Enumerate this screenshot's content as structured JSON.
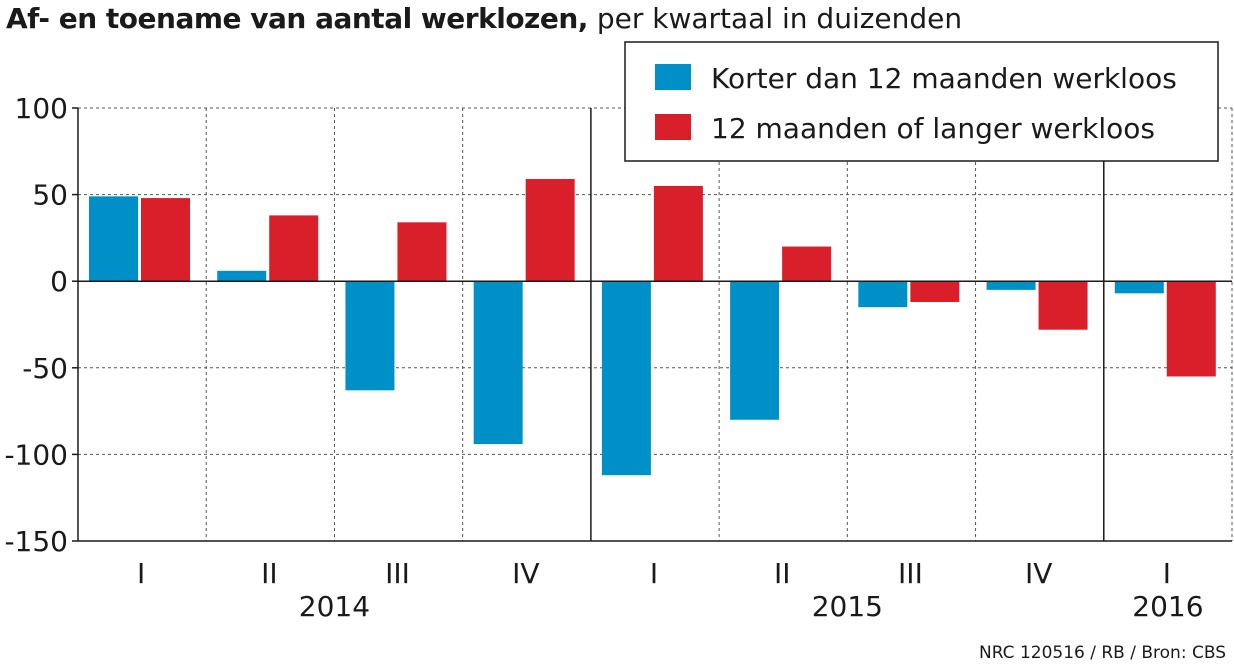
{
  "title": "Af- en toename van aantal werklozen,",
  "subtitle": "per kwartaal in duizenden",
  "source": "NRC 120516 / RB / Bron: CBS",
  "chart_data": {
    "type": "bar",
    "categories": [
      "I",
      "II",
      "III",
      "IV",
      "I",
      "II",
      "III",
      "IV",
      "I"
    ],
    "years": [
      {
        "label": "2014",
        "from": 0,
        "to": 3
      },
      {
        "label": "2015",
        "from": 4,
        "to": 7
      },
      {
        "label": "2016",
        "from": 8,
        "to": 8
      }
    ],
    "series": [
      {
        "name": "Korter dan 12 maanden werkloos",
        "color": "#0090c8",
        "values": [
          49,
          6,
          -63,
          -94,
          -112,
          -80,
          -15,
          -5,
          -7
        ]
      },
      {
        "name": "12 maanden of langer werkloos",
        "color": "#d9202a",
        "values": [
          48,
          38,
          34,
          59,
          55,
          20,
          -12,
          -28,
          -55
        ]
      }
    ],
    "yticks": [
      100,
      50,
      0,
      -50,
      -100,
      -150
    ],
    "ylim": [
      -150,
      100
    ],
    "grid": true,
    "legend": "top-right"
  }
}
